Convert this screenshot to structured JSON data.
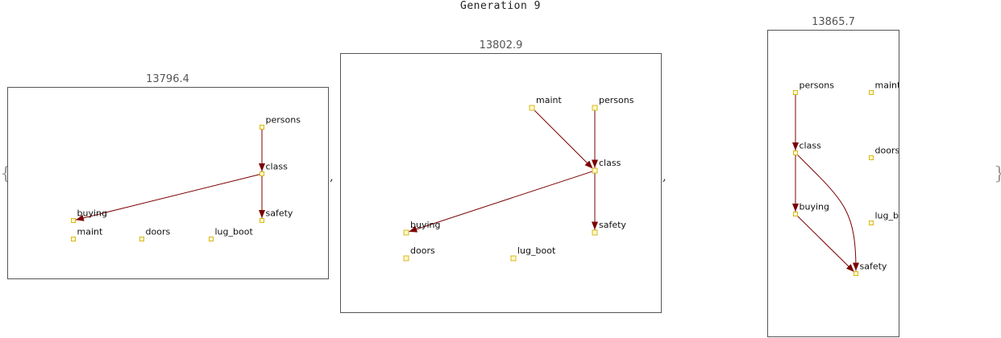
{
  "title": "Generation 9",
  "open_brace": "{",
  "close_brace": "}",
  "separator": ",",
  "graphs": [
    {
      "score": "13796.4",
      "nodes": [
        {
          "id": "persons",
          "label": "persons"
        },
        {
          "id": "class",
          "label": "class"
        },
        {
          "id": "buying",
          "label": "buying"
        },
        {
          "id": "safety",
          "label": "safety"
        },
        {
          "id": "maint",
          "label": "maint"
        },
        {
          "id": "doors",
          "label": "doors"
        },
        {
          "id": "lug_boot",
          "label": "lug_boot"
        }
      ],
      "edges": [
        {
          "from": "persons",
          "to": "class"
        },
        {
          "from": "class",
          "to": "buying"
        },
        {
          "from": "class",
          "to": "safety"
        }
      ]
    },
    {
      "score": "13802.9",
      "nodes": [
        {
          "id": "maint",
          "label": "maint"
        },
        {
          "id": "persons",
          "label": "persons"
        },
        {
          "id": "class",
          "label": "class"
        },
        {
          "id": "buying",
          "label": "buying"
        },
        {
          "id": "safety",
          "label": "safety"
        },
        {
          "id": "doors",
          "label": "doors"
        },
        {
          "id": "lug_boot",
          "label": "lug_boot"
        }
      ],
      "edges": [
        {
          "from": "maint",
          "to": "class"
        },
        {
          "from": "persons",
          "to": "class"
        },
        {
          "from": "class",
          "to": "buying"
        },
        {
          "from": "class",
          "to": "safety"
        }
      ]
    },
    {
      "score": "13865.7",
      "nodes": [
        {
          "id": "persons",
          "label": "persons"
        },
        {
          "id": "maint",
          "label": "maint"
        },
        {
          "id": "class",
          "label": "class"
        },
        {
          "id": "doors",
          "label": "doors"
        },
        {
          "id": "buying",
          "label": "buying"
        },
        {
          "id": "lug_boot",
          "label": "lug_boot"
        },
        {
          "id": "safety",
          "label": "safety"
        }
      ],
      "edges": [
        {
          "from": "persons",
          "to": "class"
        },
        {
          "from": "class",
          "to": "buying"
        },
        {
          "from": "class",
          "to": "safety"
        },
        {
          "from": "buying",
          "to": "safety"
        }
      ]
    }
  ],
  "colors": {
    "edge": "#7a0000",
    "node_fill": "#fff8c8",
    "node_stroke": "#d8b820",
    "frame": "#555555"
  }
}
